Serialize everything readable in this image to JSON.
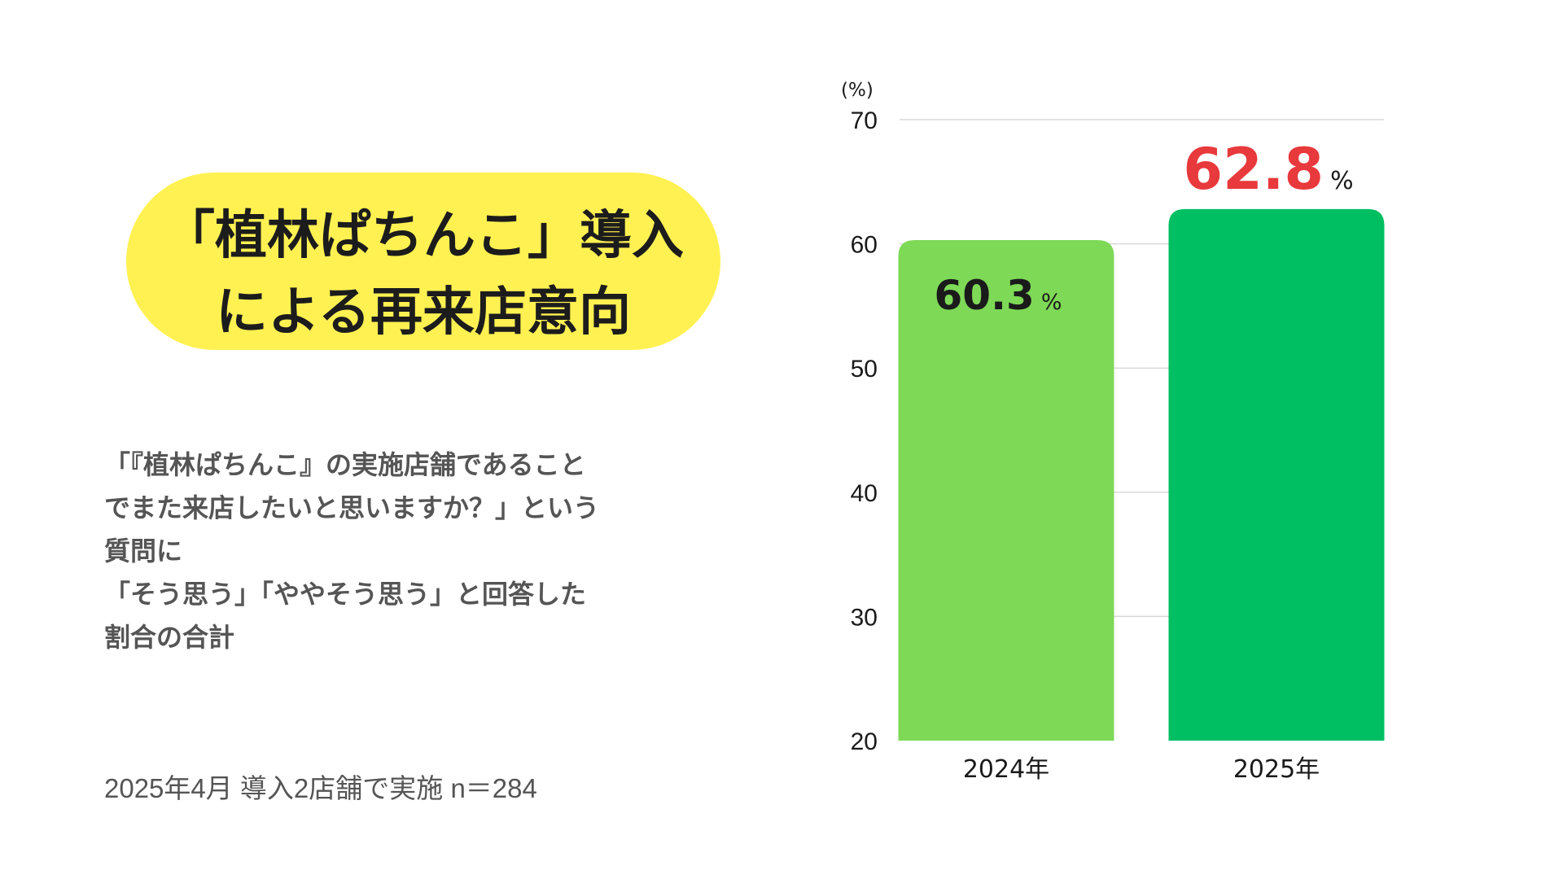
{
  "title": {
    "line1": "「植林ぱちんこ」導入",
    "line2": "による再来店意向"
  },
  "description": [
    "「『植林ぱちんこ』の実施店舗であること",
    "でまた来店したいと思いますか？」という",
    "質問に",
    "「そう思う」「ややそう思う」と回答した",
    "割合の合計"
  ],
  "footnote": "2025年4月 導入2店舗で実施 n＝284",
  "colors": {
    "title_bg": "#fff152",
    "bar_2024": "#7ed957",
    "bar_2025": "#00bf63",
    "label_2024": "#1a1a1a",
    "label_2025": "#e8393c",
    "grid": "#d9d9d9"
  },
  "chart_data": {
    "type": "bar",
    "categories": [
      "2024年",
      "2025年"
    ],
    "values": [
      60.3,
      62.8
    ],
    "value_labels": [
      "60.3",
      "62.8"
    ],
    "value_unit": "%",
    "ylabel": "(%)",
    "ylim": [
      20,
      70
    ],
    "yticks": [
      20,
      30,
      40,
      50,
      60,
      70
    ],
    "grid": true
  }
}
